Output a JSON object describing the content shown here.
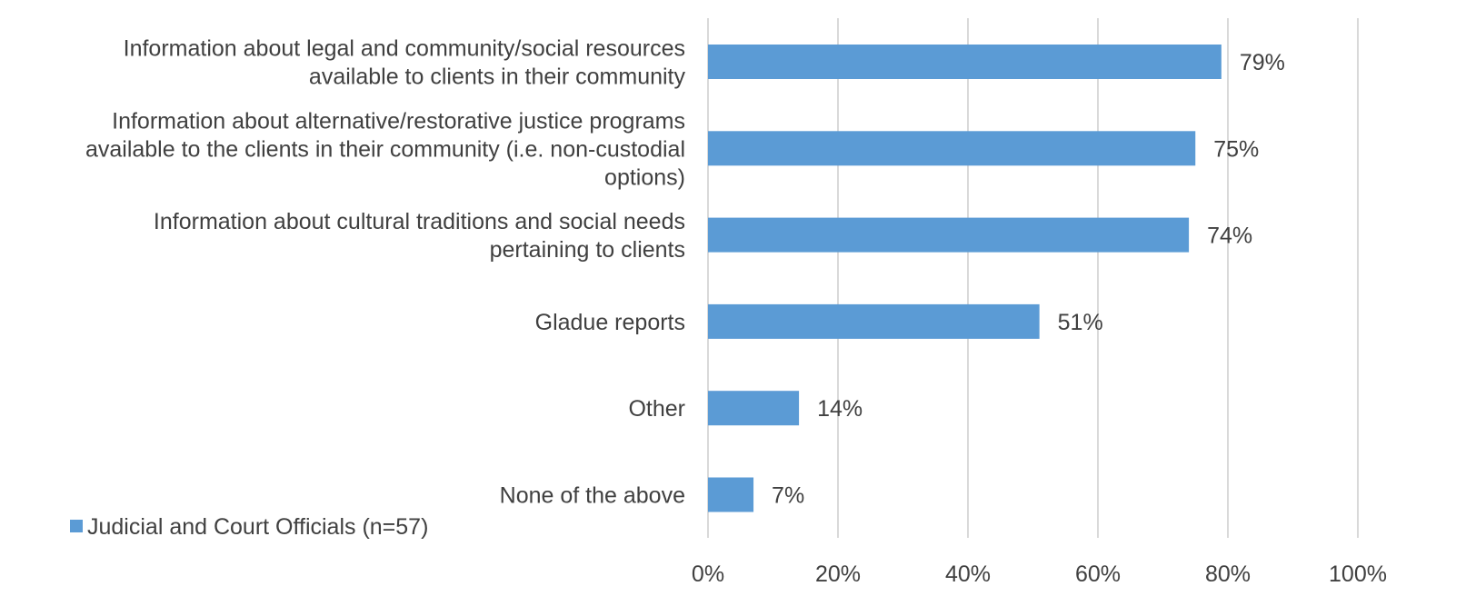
{
  "chart_data": {
    "type": "bar",
    "orientation": "horizontal",
    "categories": [
      [
        "Information about legal and community/social resources",
        "available to clients in their community"
      ],
      [
        "Information about alternative/restorative justice programs",
        "available to the clients in their community (i.e. non-custodial",
        "options)"
      ],
      [
        "Information about cultural traditions and social needs",
        "pertaining to clients"
      ],
      [
        "Gladue reports"
      ],
      [
        "Other"
      ],
      [
        "None of the above"
      ]
    ],
    "series": [
      {
        "name": "Judicial and Court Officials (n=57)",
        "values": [
          79,
          75,
          74,
          51,
          14,
          7
        ],
        "data_labels": [
          "79%",
          "75%",
          "74%",
          "51%",
          "14%",
          "7%"
        ]
      }
    ],
    "x_ticks": [
      "0%",
      "20%",
      "40%",
      "60%",
      "80%",
      "100%"
    ],
    "xlim": [
      0,
      100
    ],
    "grid": true,
    "legend_position": "bottom-left",
    "colors": {
      "bar": "#5b9bd5",
      "grid": "#d9d9d9",
      "text": "#404040"
    }
  }
}
